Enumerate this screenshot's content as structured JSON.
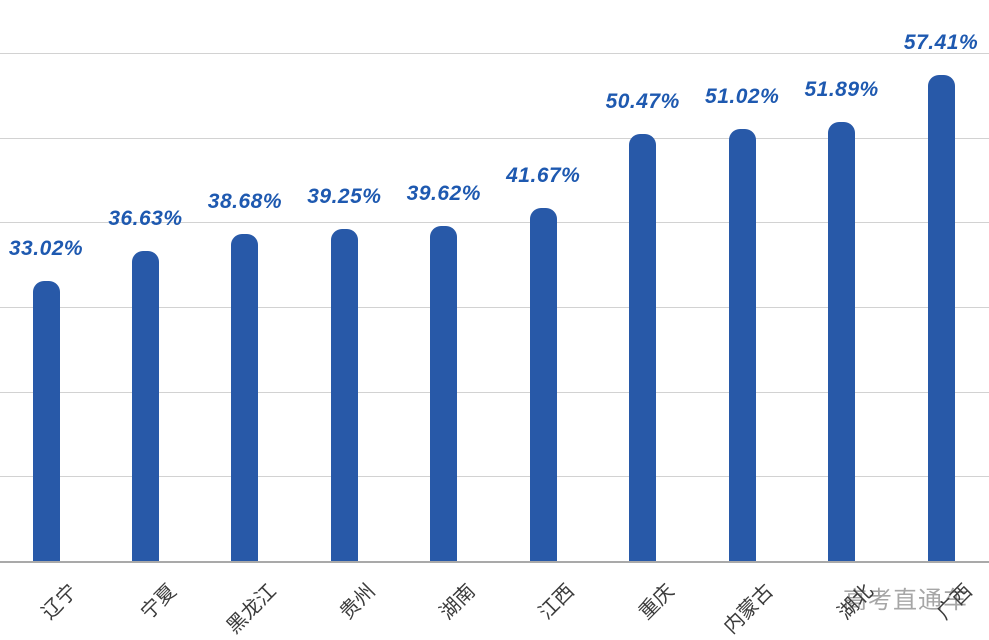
{
  "chart_data": {
    "type": "bar",
    "title": "",
    "xlabel": "",
    "ylabel": "",
    "categories": [
      "辽宁",
      "宁夏",
      "黑龙江",
      "贵州",
      "湖南",
      "江西",
      "重庆",
      "内蒙古",
      "湖北",
      "广西"
    ],
    "values": [
      33.02,
      36.63,
      38.68,
      39.25,
      39.62,
      41.67,
      50.47,
      51.02,
      51.89,
      57.41
    ],
    "value_labels": [
      "33.02%",
      "36.63%",
      "38.68%",
      "39.25%",
      "39.62%",
      "41.67%",
      "50.47%",
      "51.02%",
      "51.89%",
      "57.41%"
    ],
    "ylim": [
      0,
      60
    ],
    "grid_step": 10,
    "grid": "horizontal",
    "legend": "none",
    "y_tick_labels": "hidden",
    "x_label_rotation_deg": -45,
    "watermark": "高考直通车",
    "colors": {
      "bar": "#2859A8",
      "value_label": "#1E59B0",
      "x_label": "#3B3B3B",
      "gridline": "#D2D2D2",
      "axis_line": "#A9A9A9",
      "watermark": "#A6A6A6",
      "background": "#FFFFFF"
    }
  }
}
